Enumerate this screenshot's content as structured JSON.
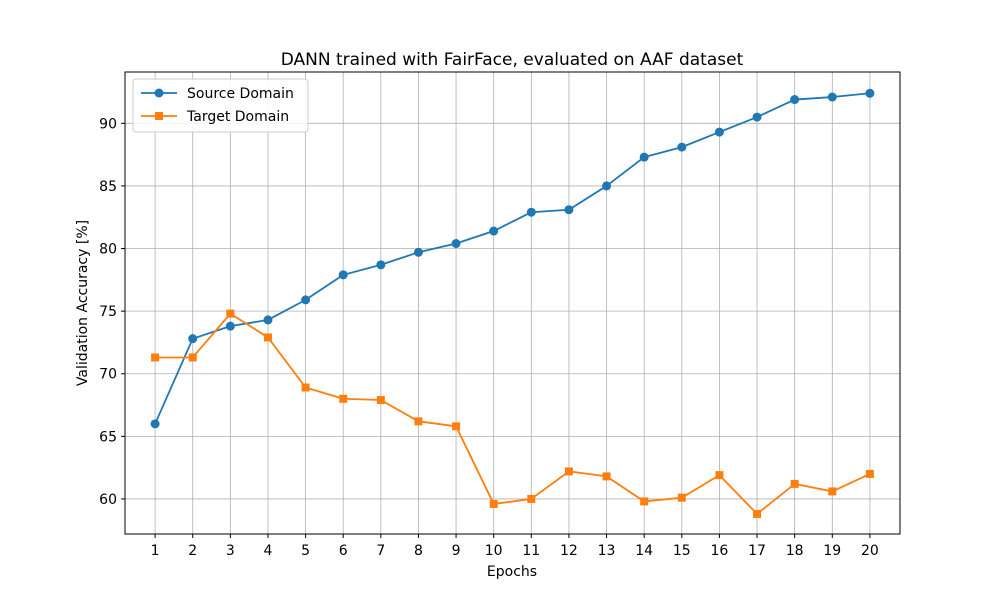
{
  "chart_data": {
    "type": "line",
    "title": "DANN trained with FairFace, evaluated on AAF dataset",
    "xlabel": "Epochs",
    "ylabel": "Validation Accuracy [%]",
    "x": [
      1,
      2,
      3,
      4,
      5,
      6,
      7,
      8,
      9,
      10,
      11,
      12,
      13,
      14,
      15,
      16,
      17,
      18,
      19,
      20
    ],
    "xlim": [
      0.2,
      20.8
    ],
    "ylim": [
      57.2,
      94.1
    ],
    "yticks": [
      60,
      65,
      70,
      75,
      80,
      85,
      90
    ],
    "grid": true,
    "legend_position": "top-left",
    "series": [
      {
        "name": "Source Domain",
        "color": "#1f77b4",
        "marker": "circle",
        "values": [
          66.0,
          72.8,
          73.8,
          74.3,
          75.9,
          77.9,
          78.7,
          79.7,
          80.4,
          81.4,
          82.9,
          83.1,
          85.0,
          87.3,
          88.1,
          89.3,
          90.5,
          91.9,
          92.1,
          92.4
        ]
      },
      {
        "name": "Target Domain",
        "color": "#ff7f0e",
        "marker": "square",
        "values": [
          71.3,
          71.3,
          74.8,
          72.9,
          68.9,
          68.0,
          67.9,
          66.2,
          65.8,
          59.6,
          60.0,
          62.2,
          61.8,
          59.8,
          60.1,
          61.9,
          58.8,
          61.2,
          60.6,
          62.0
        ]
      }
    ]
  }
}
